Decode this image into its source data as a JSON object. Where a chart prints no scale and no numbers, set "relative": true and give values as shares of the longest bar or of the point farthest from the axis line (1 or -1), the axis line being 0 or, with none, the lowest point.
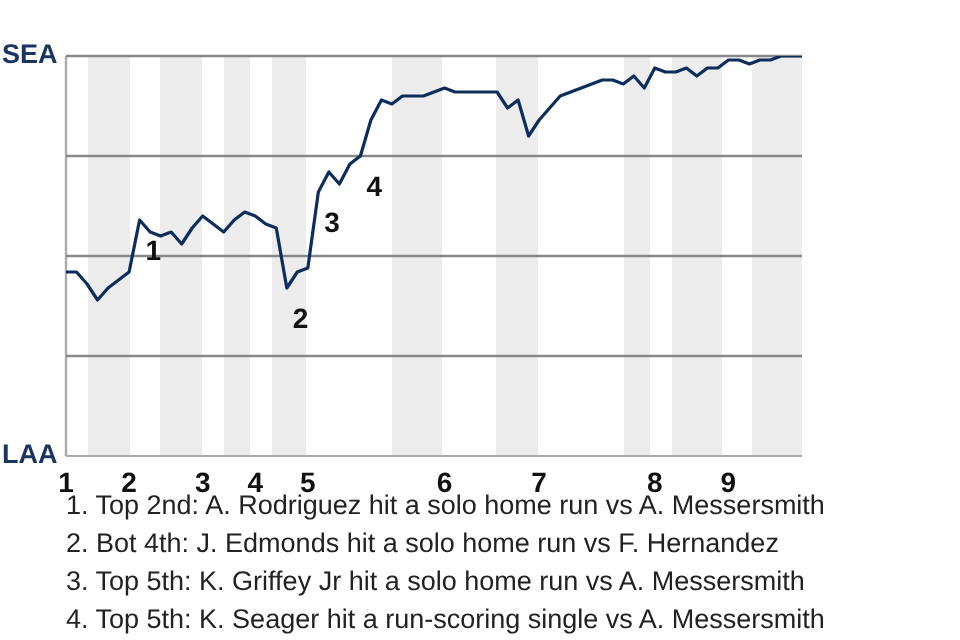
{
  "chart_data": {
    "type": "line",
    "marker": "none",
    "grid": "y",
    "relative": true,
    "categories": [
      "1",
      null,
      null,
      null,
      null,
      null,
      "2",
      null,
      null,
      null,
      null,
      null,
      null,
      "3",
      null,
      null,
      null,
      null,
      "4",
      null,
      null,
      null,
      null,
      "5",
      null,
      null,
      null,
      null,
      null,
      null,
      null,
      null,
      null,
      null,
      null,
      null,
      "6",
      null,
      null,
      null,
      null,
      null,
      null,
      null,
      null,
      "7",
      null,
      null,
      null,
      null,
      null,
      null,
      null,
      null,
      null,
      null,
      "8",
      null,
      null,
      null,
      null,
      null,
      null,
      "9",
      null,
      null,
      null,
      null,
      null,
      null,
      null
    ],
    "series": [
      {
        "color": "#0d2d5a",
        "values": [
          0.46,
          0.46,
          0.43,
          0.39,
          0.42,
          0.44,
          0.46,
          0.59,
          0.56,
          0.55,
          0.56,
          0.53,
          0.57,
          0.6,
          0.58,
          0.56,
          0.59,
          0.61,
          0.6,
          0.58,
          0.57,
          0.42,
          0.46,
          0.47,
          0.66,
          0.71,
          0.68,
          0.73,
          0.75,
          0.84,
          0.89,
          0.88,
          0.9,
          0.9,
          0.9,
          0.91,
          0.92,
          0.91,
          0.91,
          0.91,
          0.91,
          0.91,
          0.87,
          0.89,
          0.8,
          0.84,
          0.87,
          0.9,
          0.91,
          0.92,
          0.93,
          0.94,
          0.94,
          0.93,
          0.95,
          0.92,
          0.97,
          0.96,
          0.96,
          0.97,
          0.95,
          0.97,
          0.97,
          0.99,
          0.99,
          0.98,
          0.99,
          0.99,
          1.0,
          1.0,
          1.0
        ]
      }
    ],
    "annotations": [
      "SEA",
      "LAA",
      "1",
      "2",
      "3",
      "4",
      "1. Top 2nd: A. Rodriguez hit a solo home run vs A. Messersmith",
      "2. Bot 4th: J. Edmonds hit a solo home run vs F. Hernandez",
      "3. Top 5th: K. Griffey Jr hit a solo home run vs A. Messersmith",
      "4. Top 5th: K. Seager hit a run-scoring single vs A. Messersmith"
    ]
  }
}
